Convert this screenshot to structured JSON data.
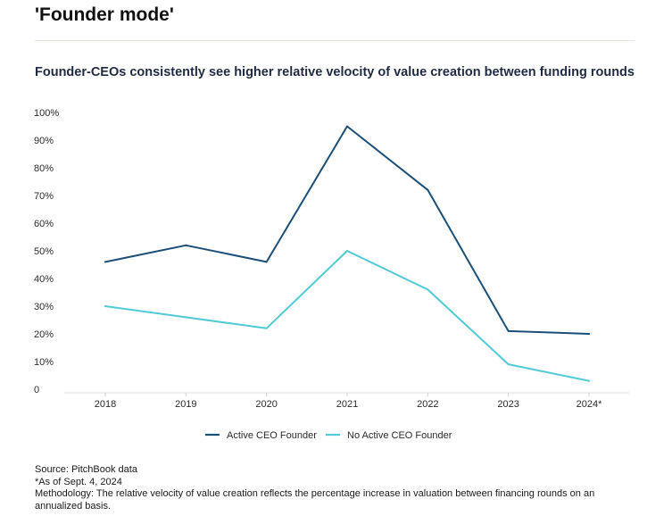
{
  "header": {
    "title": "'Founder mode'"
  },
  "chart_data": {
    "type": "line",
    "title": "Founder-CEOs consistently see higher relative velocity of value creation between funding rounds",
    "xlabel": "",
    "ylabel": "",
    "categories": [
      "2018",
      "2019",
      "2020",
      "2021",
      "2022",
      "2023",
      "2024*"
    ],
    "y_ticks": [
      "0",
      "10%",
      "20%",
      "30%",
      "40%",
      "50%",
      "60%",
      "70%",
      "80%",
      "90%",
      "100%"
    ],
    "ylim": [
      0,
      100
    ],
    "grid": false,
    "legend_position": "bottom-center",
    "series": [
      {
        "name": "Active CEO Founder",
        "color": "#1b4f7a",
        "values": [
          46,
          52,
          46,
          95,
          72,
          21,
          20
        ]
      },
      {
        "name": "No Active CEO Founder",
        "color": "#4fcad6",
        "values": [
          30,
          26,
          22,
          50,
          36,
          9,
          3
        ]
      }
    ]
  },
  "footnotes": {
    "source": "Source: PitchBook data",
    "as_of": "*As of Sept. 4, 2024",
    "methodology": "Methodology: The relative velocity of value creation reflects the percentage increase in valuation between financing rounds on an annualized basis."
  }
}
